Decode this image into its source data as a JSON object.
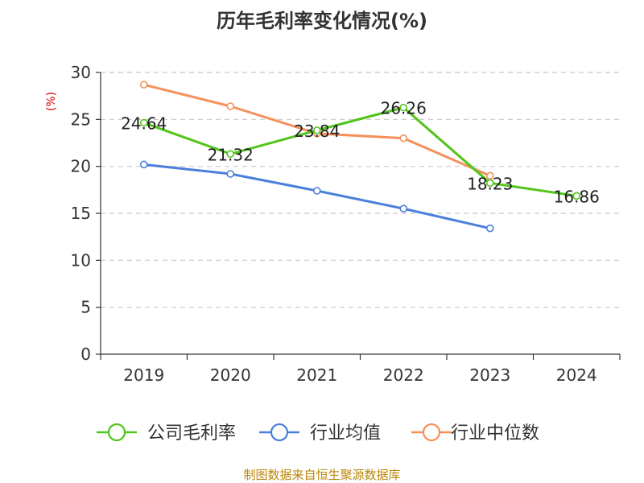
{
  "chart_data": {
    "type": "line",
    "title": "历年毛利率变化情况(%)",
    "ylabel": "(%)",
    "categories": [
      "2019",
      "2020",
      "2021",
      "2022",
      "2023",
      "2024"
    ],
    "ylim": [
      0,
      30
    ],
    "yticks": [
      "0",
      "5",
      "10",
      "15",
      "20",
      "25",
      "30"
    ],
    "grid": true,
    "legend_position": "bottom",
    "series": [
      {
        "name": "公司毛利率",
        "color": "#52c41a",
        "values": [
          24.64,
          21.32,
          23.84,
          26.26,
          18.23,
          16.86
        ],
        "labels": [
          "24.64",
          "21.32",
          "23.84",
          "26.26",
          "18.23",
          "16.86"
        ]
      },
      {
        "name": "行业均值",
        "color": "#4a7fdb",
        "values": [
          20.2,
          19.2,
          17.4,
          15.5,
          13.4,
          null
        ]
      },
      {
        "name": "行业中位数",
        "color": "#f4905a",
        "values": [
          28.7,
          26.4,
          23.5,
          23.0,
          19.0,
          null
        ]
      }
    ]
  },
  "source_text": "制图数据来自恒生聚源数据库"
}
